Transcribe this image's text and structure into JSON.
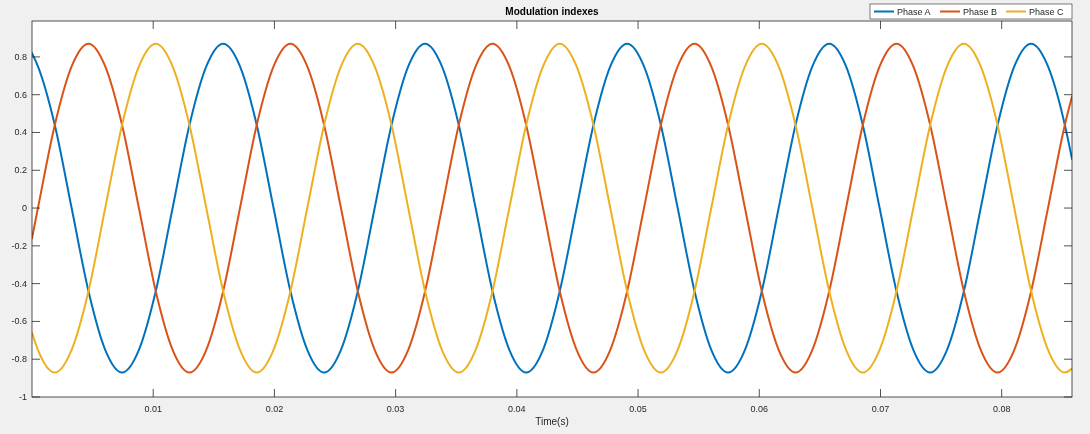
{
  "chart_data": {
    "type": "line",
    "title": "Modulation indexes",
    "xlabel": "Time(s)",
    "x": [
      0,
      0.00049,
      0.00188,
      0.00327,
      0.00466,
      0.00604,
      0.00743,
      0.00882,
      0.01021,
      0.0116,
      0.01299,
      0.01438,
      0.01577,
      0.01716,
      0.01854,
      0.01993,
      0.02132,
      0.02271,
      0.0241,
      0.02549,
      0.02688,
      0.02827,
      0.02966,
      0.03104,
      0.03243,
      0.03382,
      0.03521,
      0.0366,
      0.03799,
      0.03938,
      0.04077,
      0.04216,
      0.04354,
      0.04493,
      0.04632,
      0.04771,
      0.0491,
      0.05049,
      0.05188,
      0.05327,
      0.05466,
      0.05604,
      0.05743,
      0.05882,
      0.06021,
      0.0616,
      0.06299,
      0.06438,
      0.06577,
      0.06716,
      0.06854,
      0.06993,
      0.07132,
      0.07271,
      0.0741,
      0.07549,
      0.07688,
      0.07827,
      0.07966,
      0.08104,
      0.08243,
      0.08382,
      0.08521,
      0.0858
    ],
    "series": [
      {
        "name": "Phase A",
        "color": "#0072bd",
        "values": [
          0.82,
          0.75,
          0.44,
          0,
          -0.44,
          -0.75,
          -0.87,
          -0.75,
          -0.44,
          0,
          0.44,
          0.75,
          0.87,
          0.75,
          0.44,
          0,
          -0.44,
          -0.75,
          -0.87,
          -0.75,
          -0.44,
          0,
          0.44,
          0.75,
          0.87,
          0.75,
          0.44,
          0,
          -0.44,
          -0.75,
          -0.87,
          -0.75,
          -0.44,
          0,
          0.44,
          0.75,
          0.87,
          0.75,
          0.44,
          0,
          -0.44,
          -0.75,
          -0.87,
          -0.75,
          -0.44,
          0,
          0.44,
          0.75,
          0.87,
          0.75,
          0.44,
          0,
          -0.44,
          -0.75,
          -0.87,
          -0.75,
          -0.44,
          0,
          0.44,
          0.75,
          0.87,
          0.75,
          0.44,
          0.26
        ]
      },
      {
        "name": "Phase B",
        "color": "#d95319",
        "values": [
          -0.16,
          0,
          0.44,
          0.75,
          0.87,
          0.75,
          0.44,
          0,
          -0.44,
          -0.75,
          -0.87,
          -0.75,
          -0.44,
          0,
          0.44,
          0.75,
          0.87,
          0.75,
          0.44,
          0,
          -0.44,
          -0.75,
          -0.87,
          -0.75,
          -0.44,
          0,
          0.44,
          0.75,
          0.87,
          0.75,
          0.44,
          0,
          -0.44,
          -0.75,
          -0.87,
          -0.75,
          -0.44,
          0,
          0.44,
          0.75,
          0.87,
          0.75,
          0.44,
          0,
          -0.44,
          -0.75,
          -0.87,
          -0.75,
          -0.44,
          0,
          0.44,
          0.75,
          0.87,
          0.75,
          0.44,
          0,
          -0.44,
          -0.75,
          -0.87,
          -0.75,
          -0.44,
          0,
          0.44,
          0.59
        ]
      },
      {
        "name": "Phase C",
        "color": "#edb120",
        "values": [
          -0.66,
          -0.75,
          -0.87,
          -0.75,
          -0.44,
          0,
          0.44,
          0.75,
          0.87,
          0.75,
          0.44,
          0,
          -0.44,
          -0.75,
          -0.87,
          -0.75,
          -0.44,
          0,
          0.44,
          0.75,
          0.87,
          0.75,
          0.44,
          0,
          -0.44,
          -0.75,
          -0.87,
          -0.75,
          -0.44,
          0,
          0.44,
          0.75,
          0.87,
          0.75,
          0.44,
          0,
          -0.44,
          -0.75,
          -0.87,
          -0.75,
          -0.44,
          0,
          0.44,
          0.75,
          0.87,
          0.75,
          0.44,
          0,
          -0.44,
          -0.75,
          -0.87,
          -0.75,
          -0.44,
          0,
          0.44,
          0.75,
          0.87,
          0.75,
          0.44,
          0,
          -0.44,
          -0.75,
          -0.87,
          -0.85
        ]
      }
    ],
    "xlim": [
      0,
      0.0858
    ],
    "xticks": [
      0.01,
      0.02,
      0.03,
      0.04,
      0.05,
      0.06,
      0.07,
      0.08
    ],
    "ylim": [
      -1,
      0.99
    ],
    "yticks": [
      -1,
      -0.8,
      -0.6,
      -0.4,
      -0.2,
      0,
      0.2,
      0.4,
      0.6,
      0.8
    ],
    "grid": false,
    "legend": "top right",
    "line_style": "solid",
    "marker": "none"
  }
}
